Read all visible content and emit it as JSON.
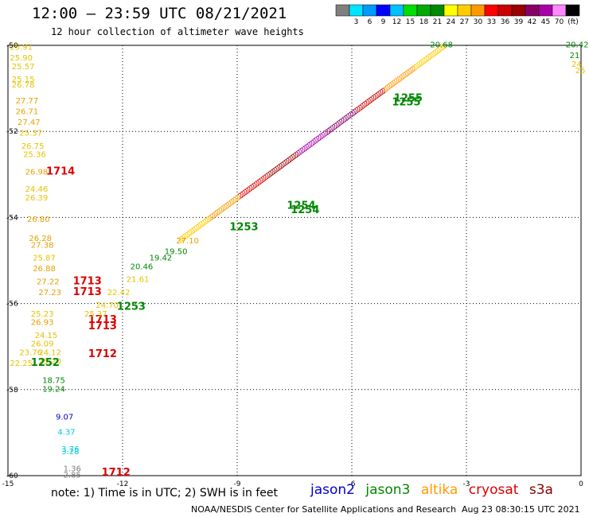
{
  "header": {
    "title": "12:00 – 23:59 UTC 08/21/2021",
    "subtitle": "12 hour collection of altimeter wave heights"
  },
  "footer": {
    "note": "note: 1) Time is in UTC; 2) SWH is in feet",
    "credit": "NOAA/NESDIS Center for Satellite Applications and Research",
    "timestamp": "Aug 23 08:30:15 UTC 2021",
    "satellites": [
      {
        "name": "jason2",
        "color": "#0000cc"
      },
      {
        "name": "jason3",
        "color": "#008800"
      },
      {
        "name": "altika",
        "color": "#ff9900"
      },
      {
        "name": "cryosat",
        "color": "#dd0000"
      },
      {
        "name": "s3a",
        "color": "#880000"
      }
    ]
  },
  "colorbar": {
    "unit": "(ft)",
    "bins": [
      {
        "label": "",
        "color": "#7f7f7f"
      },
      {
        "label": "3",
        "color": "#00e5ff"
      },
      {
        "label": "6",
        "color": "#0099ff"
      },
      {
        "label": "9",
        "color": "#0000ff"
      },
      {
        "label": "12",
        "color": "#00c0ff"
      },
      {
        "label": "15",
        "color": "#00dd00"
      },
      {
        "label": "18",
        "color": "#00aa00"
      },
      {
        "label": "21",
        "color": "#008800"
      },
      {
        "label": "24",
        "color": "#ffff00"
      },
      {
        "label": "27",
        "color": "#ffcc00"
      },
      {
        "label": "30",
        "color": "#ff9900"
      },
      {
        "label": "33",
        "color": "#ff0000"
      },
      {
        "label": "36",
        "color": "#cc0000"
      },
      {
        "label": "39",
        "color": "#990000"
      },
      {
        "label": "42",
        "color": "#880066"
      },
      {
        "label": "45",
        "color": "#aa00aa"
      },
      {
        "label": "70",
        "color": "#ff88ff"
      },
      {
        "label": "",
        "color": "#000000"
      }
    ]
  },
  "chart_data": {
    "type": "scatter",
    "xlim": [
      -15,
      0
    ],
    "ylim": [
      -60,
      -50
    ],
    "xticks": [
      -15,
      -12,
      -9,
      -6,
      -3,
      0
    ],
    "yticks": [
      -50,
      -52,
      -54,
      -56,
      -58,
      -60
    ],
    "grid": true,
    "labels": [
      {
        "x": -14.95,
        "y": -50.1,
        "text": "25.91",
        "color": "#e6c200"
      },
      {
        "x": -14.95,
        "y": -50.35,
        "text": "25.90",
        "color": "#e6c200"
      },
      {
        "x": -14.9,
        "y": -50.55,
        "text": "25.57",
        "color": "#e6c200"
      },
      {
        "x": -14.9,
        "y": -50.85,
        "text": "25.15",
        "color": "#e6c200"
      },
      {
        "x": -14.9,
        "y": -50.98,
        "text": "26.78",
        "color": "#e6c200"
      },
      {
        "x": -14.8,
        "y": -51.35,
        "text": "27.77",
        "color": "#e6a000"
      },
      {
        "x": -14.8,
        "y": -51.6,
        "text": "26.71",
        "color": "#e6a000"
      },
      {
        "x": -14.75,
        "y": -51.85,
        "text": "27.47",
        "color": "#e6a000"
      },
      {
        "x": -14.7,
        "y": -52.1,
        "text": "25.37",
        "color": "#e6c200"
      },
      {
        "x": -14.65,
        "y": -52.4,
        "text": "26.75",
        "color": "#e6c200"
      },
      {
        "x": -14.6,
        "y": -52.6,
        "text": "25.36",
        "color": "#e6c200"
      },
      {
        "x": -14.55,
        "y": -53.0,
        "text": "26.98",
        "color": "#e6a000"
      },
      {
        "x": -14.0,
        "y": -53.0,
        "text": "1714",
        "color": "#dd0000"
      },
      {
        "x": -14.55,
        "y": -53.4,
        "text": "24.46",
        "color": "#e6c200"
      },
      {
        "x": -14.55,
        "y": -53.6,
        "text": "26.39",
        "color": "#e6c200"
      },
      {
        "x": -14.5,
        "y": -54.1,
        "text": "26.80",
        "color": "#e6a000"
      },
      {
        "x": -14.45,
        "y": -54.55,
        "text": "26.28",
        "color": "#e6a000"
      },
      {
        "x": -14.4,
        "y": -54.7,
        "text": "27.38",
        "color": "#e6a000"
      },
      {
        "x": -14.35,
        "y": -55.0,
        "text": "25.87",
        "color": "#e6c200"
      },
      {
        "x": -14.35,
        "y": -55.25,
        "text": "26.88",
        "color": "#e6a000"
      },
      {
        "x": -14.25,
        "y": -55.55,
        "text": "27.22",
        "color": "#e6a000"
      },
      {
        "x": -13.3,
        "y": -55.55,
        "text": "1713",
        "color": "#dd0000"
      },
      {
        "x": -14.2,
        "y": -55.8,
        "text": "27.23",
        "color": "#e6a000"
      },
      {
        "x": -13.3,
        "y": -55.8,
        "text": "1713",
        "color": "#dd0000"
      },
      {
        "x": -14.4,
        "y": -56.3,
        "text": "25.23",
        "color": "#e6c200"
      },
      {
        "x": -14.4,
        "y": -56.5,
        "text": "26.93",
        "color": "#e6a000"
      },
      {
        "x": -12.9,
        "y": -56.45,
        "text": "1713",
        "color": "#dd0000"
      },
      {
        "x": -12.9,
        "y": -56.6,
        "text": "1713",
        "color": "#dd0000"
      },
      {
        "x": -14.3,
        "y": -56.8,
        "text": "24.15",
        "color": "#e6c200"
      },
      {
        "x": -14.4,
        "y": -57.0,
        "text": "26.09",
        "color": "#e6c200"
      },
      {
        "x": -14.7,
        "y": -57.2,
        "text": "23.76",
        "color": "#e6c200"
      },
      {
        "x": -14.2,
        "y": -57.2,
        "text": "24.12",
        "color": "#e6c200"
      },
      {
        "x": -14.95,
        "y": -57.45,
        "text": "22.25",
        "color": "#e6c200"
      },
      {
        "x": -14.2,
        "y": -57.4,
        "text": "25.20",
        "color": "#e6c200"
      },
      {
        "x": -14.4,
        "y": -57.45,
        "text": "1252",
        "color": "#008800"
      },
      {
        "x": -12.9,
        "y": -57.25,
        "text": "1712",
        "color": "#dd0000"
      },
      {
        "x": -14.1,
        "y": -57.85,
        "text": "18.75",
        "color": "#008800"
      },
      {
        "x": -14.1,
        "y": -58.05,
        "text": "19.24",
        "color": "#008800"
      },
      {
        "x": -13.75,
        "y": -58.7,
        "text": "9.07",
        "color": "#0000cc"
      },
      {
        "x": -13.7,
        "y": -59.05,
        "text": "4.37",
        "color": "#00c8e0"
      },
      {
        "x": -13.6,
        "y": -59.45,
        "text": "3.76",
        "color": "#00c8e0"
      },
      {
        "x": -13.6,
        "y": -59.5,
        "text": "3.28",
        "color": "#00c8e0"
      },
      {
        "x": -13.55,
        "y": -59.9,
        "text": "1.36",
        "color": "#7f7f7f"
      },
      {
        "x": -13.55,
        "y": -60.05,
        "text": "2.85",
        "color": "#7f7f7f"
      },
      {
        "x": -12.55,
        "y": -60.0,
        "text": "1712",
        "color": "#dd0000"
      },
      {
        "x": -12.15,
        "y": -56.15,
        "text": "1253",
        "color": "#008800"
      },
      {
        "x": -9.2,
        "y": -54.3,
        "text": "1253",
        "color": "#008800"
      },
      {
        "x": -7.7,
        "y": -53.8,
        "text": "1254",
        "color": "#008800"
      },
      {
        "x": -7.6,
        "y": -53.9,
        "text": "1254",
        "color": "#008800"
      },
      {
        "x": -4.9,
        "y": -51.3,
        "text": "1255",
        "color": "#008800"
      },
      {
        "x": -4.95,
        "y": -51.4,
        "text": "1255",
        "color": "#008800"
      },
      {
        "x": -3.95,
        "y": -50.05,
        "text": "20.68",
        "color": "#008800"
      },
      {
        "x": -0.4,
        "y": -50.05,
        "text": "20.42",
        "color": "#008800"
      },
      {
        "x": -0.3,
        "y": -50.3,
        "text": "21",
        "color": "#008800"
      },
      {
        "x": -0.25,
        "y": -50.5,
        "text": "24",
        "color": "#e6c200"
      },
      {
        "x": -0.15,
        "y": -50.65,
        "text": "25",
        "color": "#e6c200"
      },
      {
        "x": -12.4,
        "y": -55.8,
        "text": "22.42",
        "color": "#e6c200"
      },
      {
        "x": -11.9,
        "y": -55.5,
        "text": "21.61",
        "color": "#e6c200"
      },
      {
        "x": -11.8,
        "y": -55.2,
        "text": "20.46",
        "color": "#008800"
      },
      {
        "x": -11.3,
        "y": -55.0,
        "text": "19.42",
        "color": "#008800"
      },
      {
        "x": -10.9,
        "y": -54.85,
        "text": "19.50",
        "color": "#008800"
      },
      {
        "x": -10.6,
        "y": -54.6,
        "text": "27.10",
        "color": "#e6a000"
      },
      {
        "x": -12.7,
        "y": -56.1,
        "text": "24.70",
        "color": "#e6c200"
      },
      {
        "x": -13.0,
        "y": -56.3,
        "text": "25.37",
        "color": "#e6c200"
      }
    ],
    "track": {
      "from": [
        -10.5,
        -54.6
      ],
      "to": [
        -3.6,
        -50.1
      ]
    }
  }
}
